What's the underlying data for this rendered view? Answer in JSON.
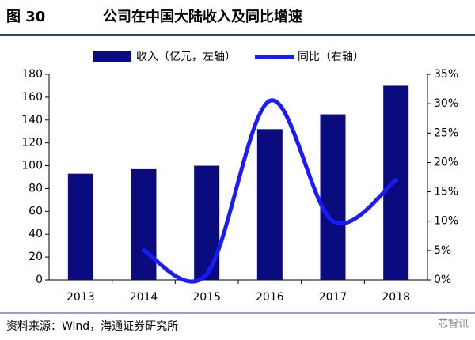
{
  "figure_label": "图 30",
  "source": "资料来源：Wind，海通证券研究所",
  "watermark": "芯智讯",
  "chart_data": {
    "type": "bar_line",
    "title": "公司在中国大陆收入及同比增速",
    "categories": [
      "2013",
      "2014",
      "2015",
      "2016",
      "2017",
      "2018"
    ],
    "series": [
      {
        "name": "收入（亿元，左轴）",
        "type": "bar",
        "color": "#0b0b80",
        "values": [
          93,
          97,
          100,
          132,
          145,
          170
        ]
      },
      {
        "name": "同比（右轴）",
        "type": "line",
        "axis": "y2",
        "color": "#1a1aff",
        "values": [
          null,
          5,
          1,
          30.5,
          10,
          17
        ]
      }
    ],
    "ylim": [
      0,
      180
    ],
    "yticks": [
      0,
      20,
      40,
      60,
      80,
      100,
      120,
      140,
      160,
      180
    ],
    "y2lim": [
      0,
      35
    ],
    "y2ticks": [
      {
        "value": 0,
        "label": "0%"
      },
      {
        "value": 5,
        "label": "5%"
      },
      {
        "value": 10,
        "label": "10%"
      },
      {
        "value": 15,
        "label": "15%"
      },
      {
        "value": 20,
        "label": "20%"
      },
      {
        "value": 25,
        "label": "25%"
      },
      {
        "value": 30,
        "label": "30%"
      },
      {
        "value": 35,
        "label": "35%"
      }
    ],
    "legend": "top"
  }
}
